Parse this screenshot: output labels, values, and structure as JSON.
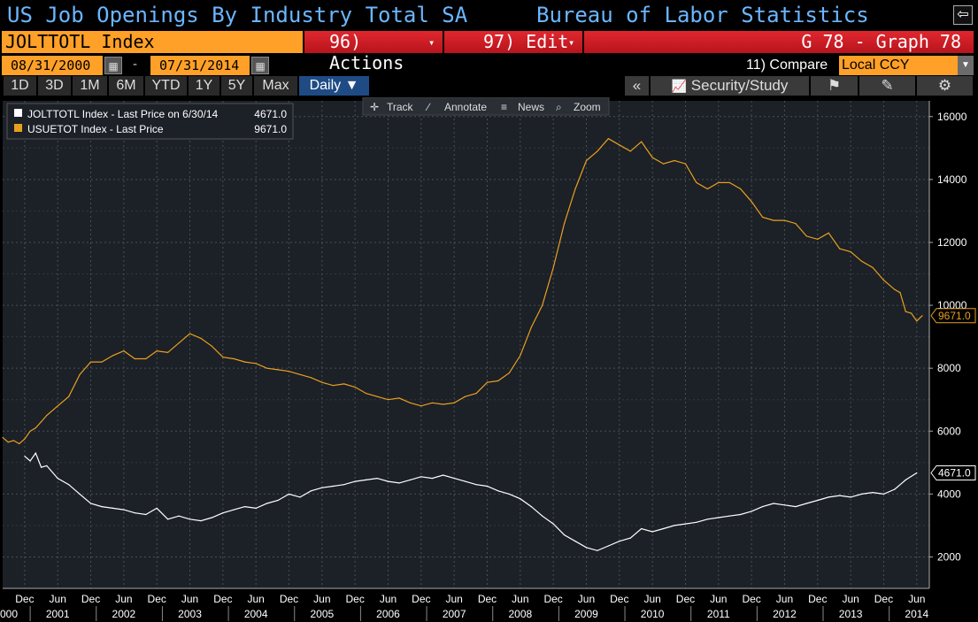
{
  "title_bar": {
    "left_title": "US Job Openings By Industry Total SA",
    "right_title": "Bureau of Labor Statistics",
    "back_icon": "back-arrow-icon"
  },
  "command_bar": {
    "ticker": "JOLTTOTL Index",
    "actions_label": "96) Actions",
    "edit_label": "97) Edit",
    "graph_label": "G 78 - Graph 78"
  },
  "date_bar": {
    "start_date": "08/31/2000",
    "end_date": "07/31/2014",
    "dash": "-",
    "compare_label": "11) Compare",
    "currency": "Local CCY"
  },
  "period_bar": {
    "periods": [
      "1D",
      "3D",
      "1M",
      "6M",
      "YTD",
      "1Y",
      "5Y",
      "Max"
    ],
    "frequency": "Daily ▼",
    "collapse": "«",
    "security_study": "Security/Study"
  },
  "toolbar": {
    "track": "Track",
    "annotate": "Annotate",
    "news": "News",
    "zoom": "Zoom"
  },
  "legend": {
    "entries": [
      {
        "name": "JOLTTOTL Index - Last Price on 6/30/14",
        "value": "4671.0",
        "color": "#ffffff"
      },
      {
        "name": "USUETOT Index - Last Price",
        "value": "9671.0",
        "color": "#e8a020"
      }
    ]
  },
  "colors": {
    "jolts": "#ffffff",
    "unemployed": "#e8a020",
    "ticker_bg": "#ffa028",
    "red_bar": "#c8161e",
    "title_text": "#6bb6ff"
  },
  "chart_data": {
    "type": "line",
    "ylim": [
      1000,
      16500
    ],
    "y_ticks": [
      2000,
      4000,
      6000,
      8000,
      10000,
      12000,
      14000,
      16000
    ],
    "y_tick_labels": [
      "2000",
      "4000",
      "6000",
      "8000",
      "10000",
      "12000",
      "14000",
      "16000"
    ],
    "x_tick_labels": [
      "Dec",
      "Jun",
      "Dec",
      "Jun",
      "Dec",
      "Jun",
      "Dec",
      "Jun",
      "Dec",
      "Jun",
      "Dec",
      "Jun",
      "Dec",
      "Jun",
      "Dec",
      "Jun",
      "Dec",
      "Jun",
      "Dec",
      "Jun",
      "Dec",
      "Jun",
      "Dec",
      "Jun",
      "Dec",
      "Jun",
      "Dec",
      "Jun"
    ],
    "x_tick_dates": [
      "2000-12",
      "2001-06",
      "2001-12",
      "2002-06",
      "2002-12",
      "2003-06",
      "2003-12",
      "2004-06",
      "2004-12",
      "2005-06",
      "2005-12",
      "2006-06",
      "2006-12",
      "2007-06",
      "2007-12",
      "2008-06",
      "2008-12",
      "2009-06",
      "2009-12",
      "2010-06",
      "2010-12",
      "2011-06",
      "2011-12",
      "2012-06",
      "2012-12",
      "2013-06",
      "2013-12",
      "2014-06"
    ],
    "year_labels": [
      "000",
      "2001",
      "2002",
      "2003",
      "2004",
      "2005",
      "2006",
      "2007",
      "2008",
      "2009",
      "2010",
      "2011",
      "2012",
      "2013",
      "2014"
    ],
    "year_label_dates": [
      "2000-08",
      "2001-06",
      "2002-06",
      "2003-06",
      "2004-06",
      "2005-06",
      "2006-06",
      "2007-06",
      "2008-06",
      "2009-06",
      "2010-06",
      "2011-06",
      "2012-06",
      "2013-06",
      "2014-06"
    ],
    "x_start": "2000-08",
    "x_end": "2014-07",
    "series": [
      {
        "name": "JOLTTOTL Index",
        "last_label": "4671.0",
        "points": [
          [
            "2000-12",
            5200
          ],
          [
            "2001-01",
            5050
          ],
          [
            "2001-02",
            5300
          ],
          [
            "2001-03",
            4850
          ],
          [
            "2001-04",
            4900
          ],
          [
            "2001-06",
            4500
          ],
          [
            "2001-08",
            4300
          ],
          [
            "2001-10",
            4000
          ],
          [
            "2001-12",
            3700
          ],
          [
            "2002-02",
            3600
          ],
          [
            "2002-04",
            3550
          ],
          [
            "2002-06",
            3500
          ],
          [
            "2002-08",
            3400
          ],
          [
            "2002-10",
            3350
          ],
          [
            "2002-12",
            3550
          ],
          [
            "2003-02",
            3200
          ],
          [
            "2003-04",
            3300
          ],
          [
            "2003-06",
            3200
          ],
          [
            "2003-08",
            3150
          ],
          [
            "2003-10",
            3250
          ],
          [
            "2003-12",
            3400
          ],
          [
            "2004-02",
            3500
          ],
          [
            "2004-04",
            3600
          ],
          [
            "2004-06",
            3550
          ],
          [
            "2004-08",
            3700
          ],
          [
            "2004-10",
            3800
          ],
          [
            "2004-12",
            4000
          ],
          [
            "2005-02",
            3900
          ],
          [
            "2005-04",
            4100
          ],
          [
            "2005-06",
            4200
          ],
          [
            "2005-08",
            4250
          ],
          [
            "2005-10",
            4300
          ],
          [
            "2005-12",
            4400
          ],
          [
            "2006-02",
            4450
          ],
          [
            "2006-04",
            4500
          ],
          [
            "2006-06",
            4400
          ],
          [
            "2006-08",
            4350
          ],
          [
            "2006-10",
            4450
          ],
          [
            "2006-12",
            4550
          ],
          [
            "2007-02",
            4500
          ],
          [
            "2007-04",
            4600
          ],
          [
            "2007-06",
            4500
          ],
          [
            "2007-08",
            4400
          ],
          [
            "2007-10",
            4300
          ],
          [
            "2007-12",
            4250
          ],
          [
            "2008-02",
            4100
          ],
          [
            "2008-04",
            4000
          ],
          [
            "2008-06",
            3850
          ],
          [
            "2008-08",
            3600
          ],
          [
            "2008-10",
            3300
          ],
          [
            "2008-12",
            3050
          ],
          [
            "2009-02",
            2700
          ],
          [
            "2009-04",
            2500
          ],
          [
            "2009-06",
            2300
          ],
          [
            "2009-08",
            2200
          ],
          [
            "2009-10",
            2350
          ],
          [
            "2009-12",
            2500
          ],
          [
            "2010-02",
            2600
          ],
          [
            "2010-04",
            2900
          ],
          [
            "2010-06",
            2800
          ],
          [
            "2010-08",
            2900
          ],
          [
            "2010-10",
            3000
          ],
          [
            "2010-12",
            3050
          ],
          [
            "2011-02",
            3100
          ],
          [
            "2011-04",
            3200
          ],
          [
            "2011-06",
            3250
          ],
          [
            "2011-08",
            3300
          ],
          [
            "2011-10",
            3350
          ],
          [
            "2011-12",
            3450
          ],
          [
            "2012-02",
            3600
          ],
          [
            "2012-04",
            3700
          ],
          [
            "2012-06",
            3650
          ],
          [
            "2012-08",
            3600
          ],
          [
            "2012-10",
            3700
          ],
          [
            "2012-12",
            3800
          ],
          [
            "2013-02",
            3900
          ],
          [
            "2013-04",
            3950
          ],
          [
            "2013-06",
            3900
          ],
          [
            "2013-08",
            4000
          ],
          [
            "2013-10",
            4050
          ],
          [
            "2013-12",
            4000
          ],
          [
            "2014-02",
            4150
          ],
          [
            "2014-04",
            4450
          ],
          [
            "2014-06",
            4671
          ]
        ]
      },
      {
        "name": "USUETOT Index",
        "last_label": "9671.0",
        "points": [
          [
            "2000-08",
            5800
          ],
          [
            "2000-09",
            5650
          ],
          [
            "2000-10",
            5700
          ],
          [
            "2000-11",
            5600
          ],
          [
            "2000-12",
            5750
          ],
          [
            "2001-01",
            6000
          ],
          [
            "2001-02",
            6100
          ],
          [
            "2001-03",
            6300
          ],
          [
            "2001-04",
            6500
          ],
          [
            "2001-06",
            6800
          ],
          [
            "2001-08",
            7100
          ],
          [
            "2001-10",
            7800
          ],
          [
            "2001-12",
            8200
          ],
          [
            "2002-02",
            8200
          ],
          [
            "2002-04",
            8400
          ],
          [
            "2002-06",
            8550
          ],
          [
            "2002-08",
            8300
          ],
          [
            "2002-10",
            8300
          ],
          [
            "2002-12",
            8550
          ],
          [
            "2003-02",
            8500
          ],
          [
            "2003-04",
            8800
          ],
          [
            "2003-06",
            9100
          ],
          [
            "2003-08",
            8950
          ],
          [
            "2003-10",
            8700
          ],
          [
            "2003-12",
            8350
          ],
          [
            "2004-02",
            8300
          ],
          [
            "2004-04",
            8200
          ],
          [
            "2004-06",
            8150
          ],
          [
            "2004-08",
            8000
          ],
          [
            "2004-10",
            7950
          ],
          [
            "2004-12",
            7900
          ],
          [
            "2005-02",
            7800
          ],
          [
            "2005-04",
            7700
          ],
          [
            "2005-06",
            7550
          ],
          [
            "2005-08",
            7450
          ],
          [
            "2005-10",
            7500
          ],
          [
            "2005-12",
            7400
          ],
          [
            "2006-02",
            7200
          ],
          [
            "2006-04",
            7100
          ],
          [
            "2006-06",
            7000
          ],
          [
            "2006-08",
            7050
          ],
          [
            "2006-10",
            6900
          ],
          [
            "2006-12",
            6800
          ],
          [
            "2007-02",
            6900
          ],
          [
            "2007-04",
            6850
          ],
          [
            "2007-06",
            6900
          ],
          [
            "2007-08",
            7100
          ],
          [
            "2007-10",
            7200
          ],
          [
            "2007-12",
            7550
          ],
          [
            "2008-02",
            7600
          ],
          [
            "2008-04",
            7850
          ],
          [
            "2008-06",
            8400
          ],
          [
            "2008-08",
            9300
          ],
          [
            "2008-10",
            10000
          ],
          [
            "2008-12",
            11200
          ],
          [
            "2009-02",
            12600
          ],
          [
            "2009-04",
            13700
          ],
          [
            "2009-06",
            14600
          ],
          [
            "2009-08",
            14900
          ],
          [
            "2009-10",
            15300
          ],
          [
            "2009-12",
            15100
          ],
          [
            "2010-02",
            14900
          ],
          [
            "2010-04",
            15200
          ],
          [
            "2010-06",
            14700
          ],
          [
            "2010-08",
            14500
          ],
          [
            "2010-10",
            14600
          ],
          [
            "2010-12",
            14500
          ],
          [
            "2011-02",
            13900
          ],
          [
            "2011-04",
            13700
          ],
          [
            "2011-06",
            13900
          ],
          [
            "2011-08",
            13900
          ],
          [
            "2011-10",
            13700
          ],
          [
            "2011-12",
            13300
          ],
          [
            "2012-02",
            12800
          ],
          [
            "2012-04",
            12700
          ],
          [
            "2012-06",
            12700
          ],
          [
            "2012-08",
            12600
          ],
          [
            "2012-10",
            12200
          ],
          [
            "2012-12",
            12100
          ],
          [
            "2013-02",
            12300
          ],
          [
            "2013-04",
            11800
          ],
          [
            "2013-06",
            11700
          ],
          [
            "2013-08",
            11400
          ],
          [
            "2013-10",
            11200
          ],
          [
            "2013-12",
            10800
          ],
          [
            "2014-02",
            10500
          ],
          [
            "2014-03",
            10400
          ],
          [
            "2014-04",
            9800
          ],
          [
            "2014-05",
            9750
          ],
          [
            "2014-06",
            9500
          ],
          [
            "2014-07",
            9671
          ]
        ]
      }
    ]
  }
}
